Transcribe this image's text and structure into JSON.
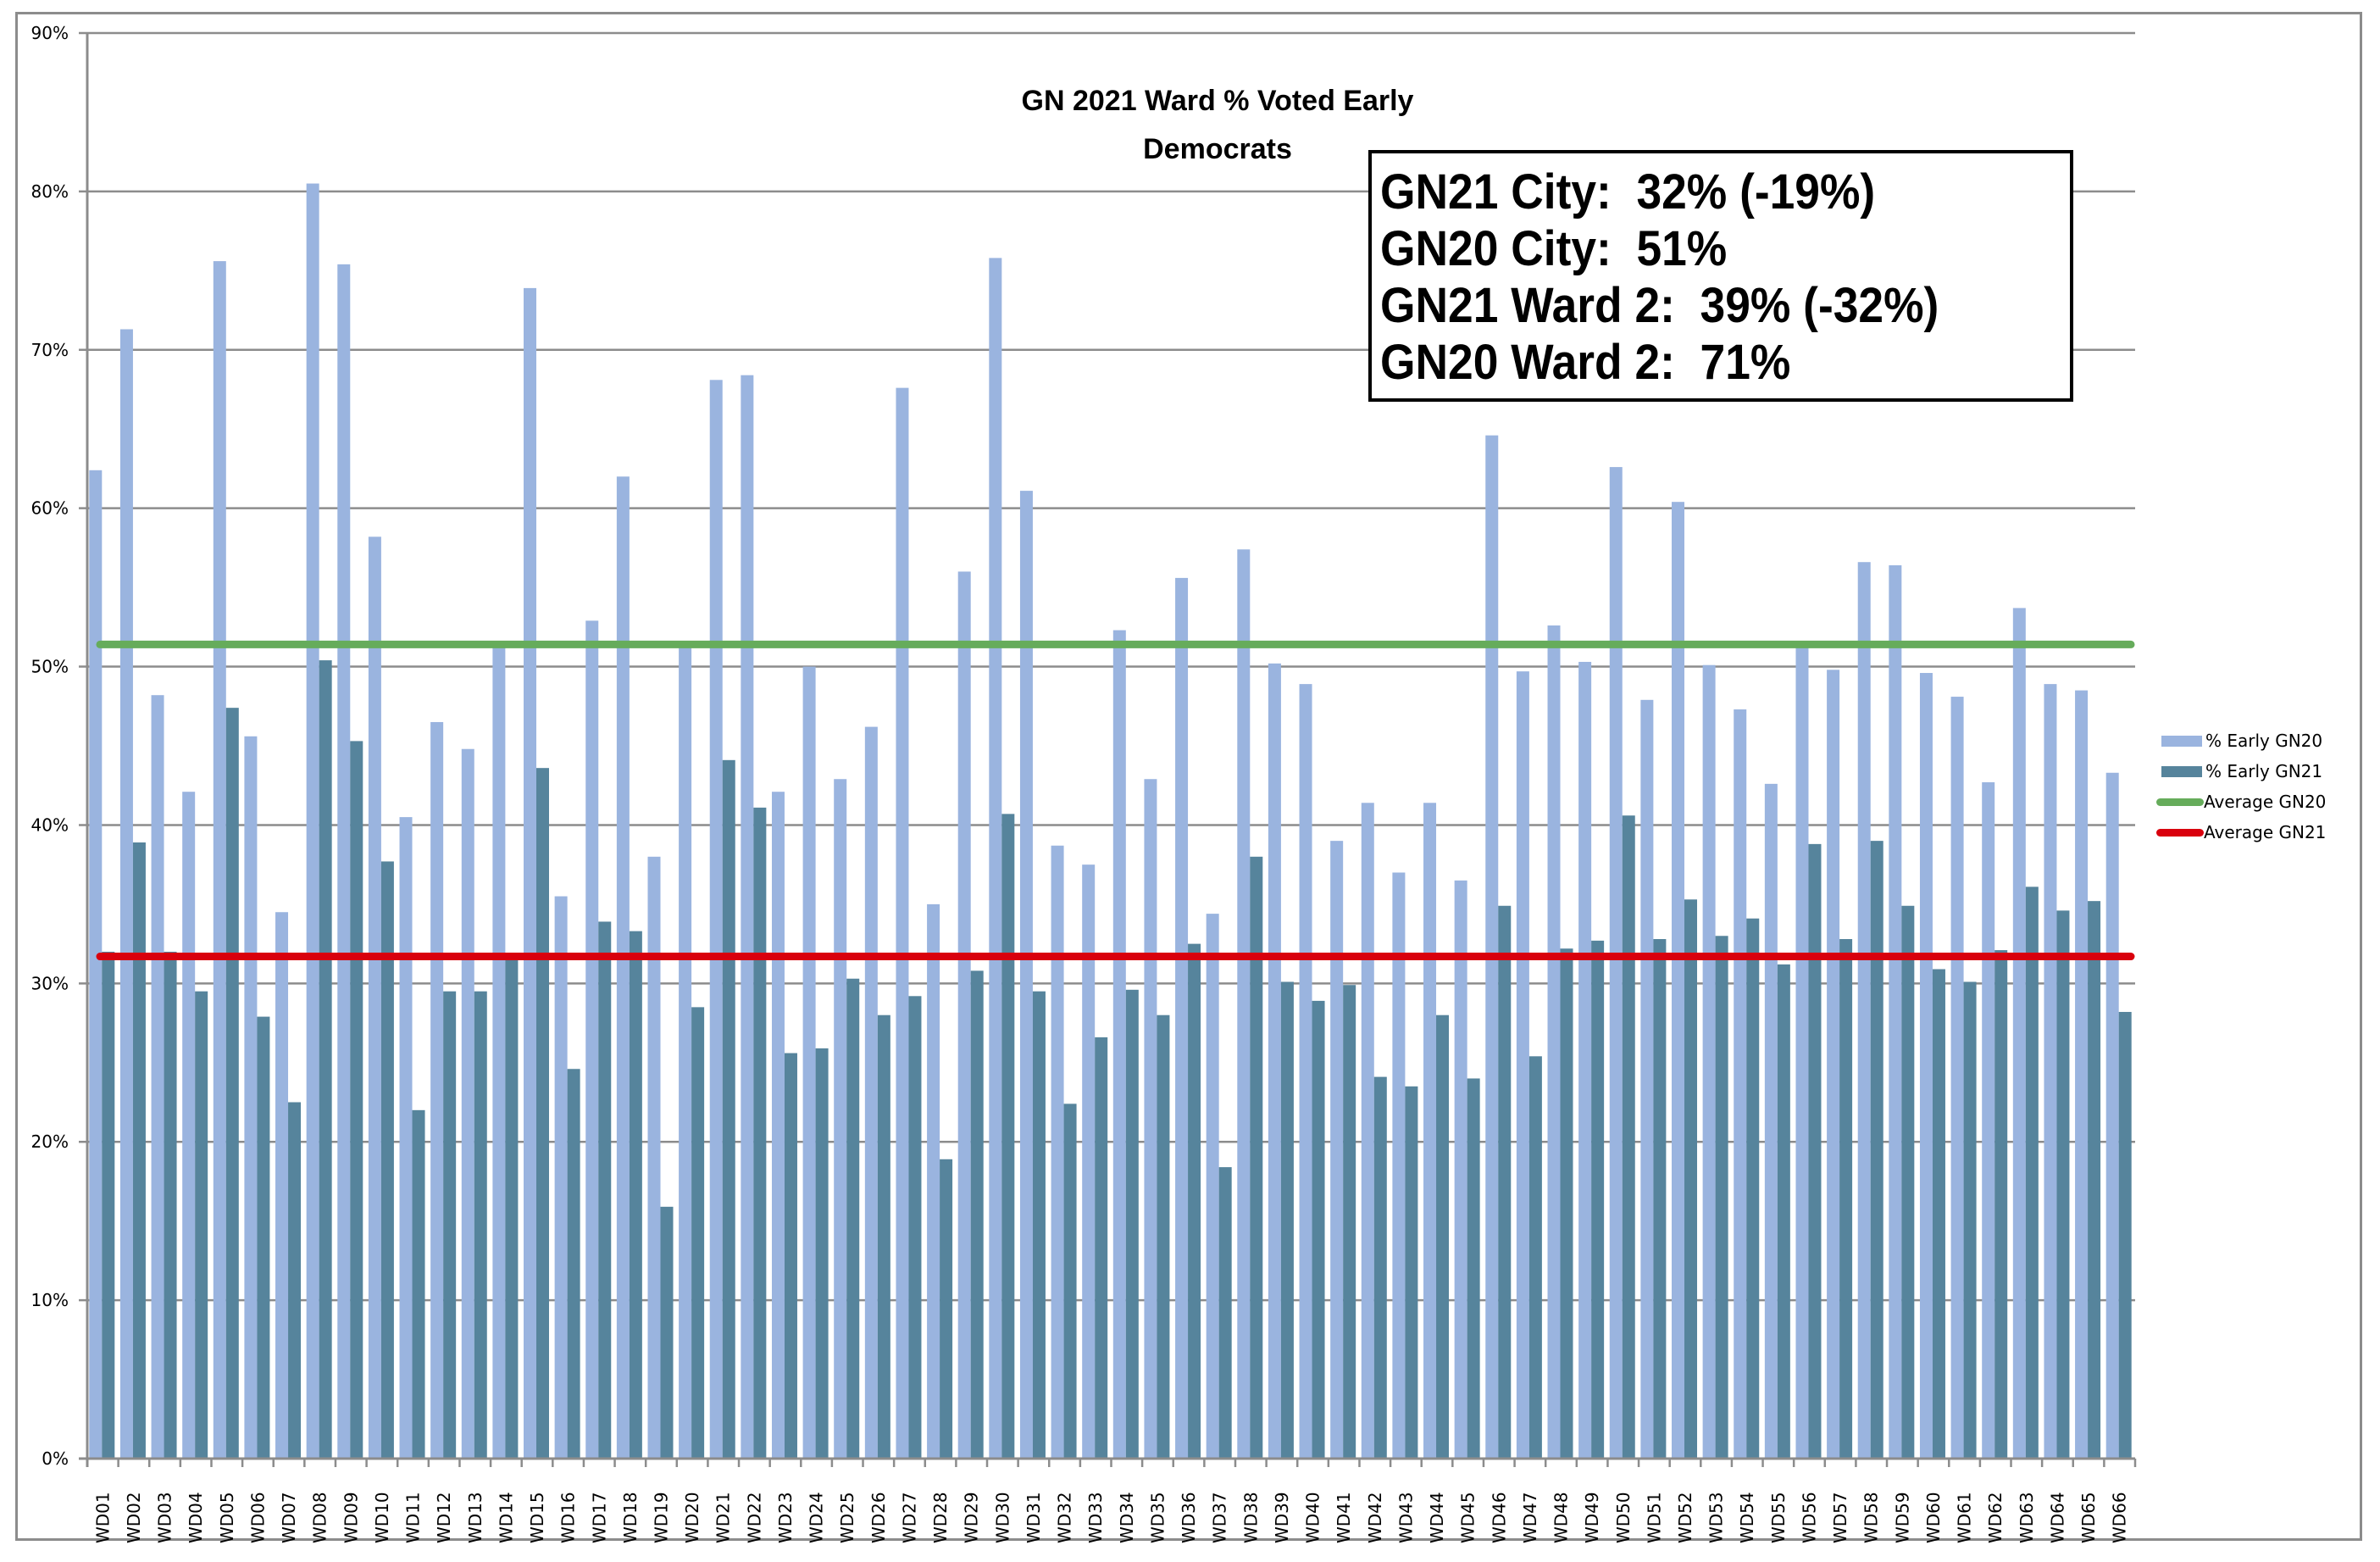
{
  "chart_data": {
    "type": "bar",
    "title": "GN 2021 Ward % Voted Early",
    "subtitle": "Democrats",
    "xlabel": "",
    "ylabel": "",
    "ylim": [
      0,
      90
    ],
    "yticks": [
      "0%",
      "10%",
      "20%",
      "30%",
      "40%",
      "50%",
      "60%",
      "70%",
      "80%",
      "90%"
    ],
    "grid": true,
    "legend_position": "right",
    "categories": [
      "WD01",
      "WD02",
      "WD03",
      "WD04",
      "WD05",
      "WD06",
      "WD07",
      "WD08",
      "WD09",
      "WD10",
      "WD11",
      "WD12",
      "WD13",
      "WD14",
      "WD15",
      "WD16",
      "WD17",
      "WD18",
      "WD19",
      "WD20",
      "WD21",
      "WD22",
      "WD23",
      "WD24",
      "WD25",
      "WD26",
      "WD27",
      "WD28",
      "WD29",
      "WD30",
      "WD31",
      "WD32",
      "WD33",
      "WD34",
      "WD35",
      "WD36",
      "WD37",
      "WD38",
      "WD39",
      "WD40",
      "WD41",
      "WD42",
      "WD43",
      "WD44",
      "WD45",
      "WD46",
      "WD47",
      "WD48",
      "WD49",
      "WD50",
      "WD51",
      "WD52",
      "WD53",
      "WD54",
      "WD55",
      "WD56",
      "WD57",
      "WD58",
      "WD59",
      "WD60",
      "WD61",
      "WD62",
      "WD63",
      "WD64",
      "WD65",
      "WD66"
    ],
    "series": [
      {
        "name": "% Early GN20",
        "type": "bar",
        "color": "#9ab4df",
        "values": [
          62.4,
          71.3,
          48.2,
          42.1,
          75.6,
          45.6,
          34.5,
          80.5,
          75.4,
          58.2,
          40.5,
          46.5,
          44.8,
          51.4,
          73.9,
          35.5,
          52.9,
          62.0,
          38.0,
          51.2,
          68.1,
          68.4,
          42.1,
          50.0,
          42.9,
          46.2,
          67.6,
          35.0,
          56.0,
          75.8,
          61.1,
          38.7,
          37.5,
          52.3,
          42.9,
          55.6,
          34.4,
          57.4,
          50.2,
          48.9,
          39.0,
          41.4,
          37.0,
          41.4,
          36.5,
          64.6,
          49.7,
          52.6,
          50.3,
          62.6,
          47.9,
          60.4,
          50.1,
          47.3,
          42.6,
          51.3,
          49.8,
          56.6,
          56.4,
          49.6,
          48.1,
          42.7,
          53.7,
          48.9,
          48.5,
          43.3
        ]
      },
      {
        "name": "% Early GN21",
        "type": "bar",
        "color": "#56849c",
        "values": [
          32.0,
          38.9,
          32.0,
          29.5,
          47.4,
          27.9,
          22.5,
          50.4,
          45.3,
          37.7,
          22.0,
          29.5,
          29.5,
          31.5,
          43.6,
          24.6,
          33.9,
          33.3,
          15.9,
          28.5,
          44.1,
          41.1,
          25.6,
          25.9,
          30.3,
          28.0,
          29.2,
          18.9,
          30.8,
          40.7,
          29.5,
          22.4,
          26.6,
          29.6,
          28.0,
          32.5,
          18.4,
          38.0,
          30.1,
          28.9,
          29.9,
          24.1,
          23.5,
          28.0,
          24.0,
          34.9,
          25.4,
          32.2,
          32.7,
          40.6,
          32.8,
          35.3,
          33.0,
          34.1,
          31.2,
          38.8,
          32.8,
          39.0,
          34.9,
          30.9,
          30.1,
          32.1,
          36.1,
          34.6,
          35.2,
          28.2
        ]
      },
      {
        "name": "Average GN20",
        "type": "line",
        "color": "#66ac5b",
        "value": 51.4
      },
      {
        "name": "Average GN21",
        "type": "line",
        "color": "#d9000d",
        "value": 31.7
      }
    ]
  },
  "callout": {
    "lines": [
      "GN21 City:  32% (-19%)",
      "GN20 City:  51%",
      "GN21 Ward 2:  39% (-32%)",
      "GN20 Ward 2:  71%"
    ]
  },
  "legend": {
    "items": [
      {
        "label": "% Early GN20",
        "color": "#9ab4df",
        "kind": "bar"
      },
      {
        "label": "% Early GN21",
        "color": "#56849c",
        "kind": "bar"
      },
      {
        "label": "Average GN20",
        "color": "#66ac5b",
        "kind": "line"
      },
      {
        "label": "Average GN21",
        "color": "#d9000d",
        "kind": "line"
      }
    ]
  },
  "colors": {
    "gridline": "#8c8c8c",
    "frame": "#8c8c8c"
  }
}
